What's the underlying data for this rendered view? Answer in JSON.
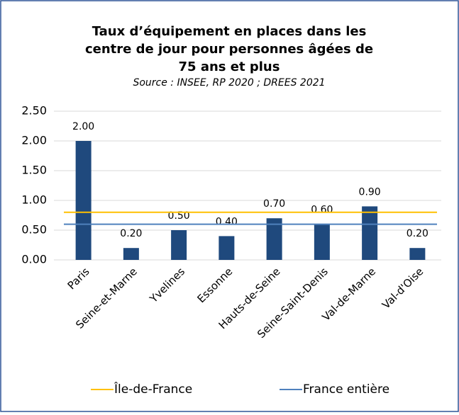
{
  "chart_data": {
    "type": "bar",
    "title": [
      "Taux d’équipement en places dans les",
      "centre de jour pour personnes âgées de",
      "75 ans et plus"
    ],
    "subtitle": "Source : INSEE, RP 2020 ; DREES 2021",
    "categories": [
      "Paris",
      "Seine-et-Marne",
      "Yvelines",
      "Essonne",
      "Hauts-de-Seine",
      "Seine-Saint-Denis",
      "Val-de-Marne",
      "Val-d'Oise"
    ],
    "values": [
      2.0,
      0.2,
      0.5,
      0.4,
      0.7,
      0.6,
      0.9,
      0.2
    ],
    "value_labels": [
      "2.00",
      "0.20",
      "0.50",
      "0.40",
      "0.70",
      "0.60",
      "0.90",
      "0.20"
    ],
    "color": "#1f497d",
    "reference_lines": [
      {
        "name": "Île-de-France",
        "color": "#ffc000",
        "value": 0.8
      },
      {
        "name": "France entière",
        "color": "#4f81bd",
        "value": 0.6
      }
    ],
    "ylim": [
      0,
      2.5
    ],
    "yticks": [
      {
        "value": 0,
        "label": "0.00"
      },
      {
        "value": 0.5,
        "label": "0.50"
      },
      {
        "value": 1,
        "label": "1.00"
      },
      {
        "value": 1.5,
        "label": "1.50"
      },
      {
        "value": 2,
        "label": "2.00"
      },
      {
        "value": 2.5,
        "label": "2.50"
      }
    ],
    "grid": true
  }
}
